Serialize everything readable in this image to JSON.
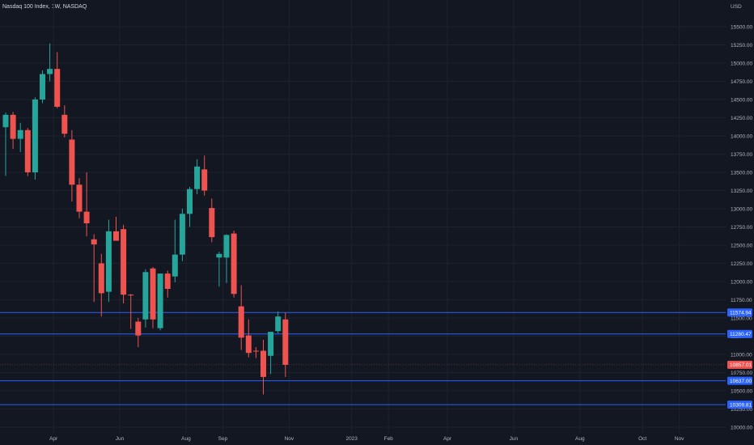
{
  "header": {
    "title": "Nasdaq 100 Index, 1W, NASDAQ",
    "currency": "USD"
  },
  "colors": {
    "background": "#131722",
    "grid": "#1e222d",
    "up": "#26a69a",
    "down": "#ef5350",
    "level_line": "#2962ff",
    "level_tag": "#2962ff",
    "last_price_tag": "#ef5350",
    "text": "#b2b5be"
  },
  "chart_data": {
    "type": "candlestick",
    "title": "Nasdaq 100 Index, 1W, NASDAQ",
    "ylabel": "USD",
    "ylim": [
      9950,
      15920
    ],
    "y_ticks": [
      10000,
      10250,
      10500,
      10750,
      11000,
      11250,
      11500,
      11750,
      12000,
      12250,
      12500,
      12750,
      13000,
      13250,
      13500,
      13750,
      14000,
      14250,
      14500,
      14750,
      15000,
      15250,
      15500
    ],
    "y_tick_labels": [
      "10000.00",
      "10250.00",
      "10500.00",
      "10750.00",
      "11000.00",
      "11250.00",
      "11500.00",
      "11750.00",
      "12000.00",
      "12250.00",
      "12500.00",
      "12750.00",
      "13000.00",
      "13250.00",
      "13500.00",
      "13750.00",
      "14000.00",
      "14250.00",
      "14500.00",
      "14750.00",
      "15000.00",
      "15250.00",
      "15500.00"
    ],
    "x_ticks": [
      {
        "label": "Apr",
        "index": 6.5
      },
      {
        "label": "Jun",
        "index": 15.5
      },
      {
        "label": "Aug",
        "index": 24.5
      },
      {
        "label": "Sep",
        "index": 29.5
      },
      {
        "label": "Nov",
        "index": 38.5
      },
      {
        "label": "2023",
        "index": 47.0
      },
      {
        "label": "Feb",
        "index": 52.0
      },
      {
        "label": "Apr",
        "index": 60.0
      },
      {
        "label": "Jun",
        "index": 69.0
      },
      {
        "label": "Aug",
        "index": 78.0
      },
      {
        "label": "Oct",
        "index": 86.5
      },
      {
        "label": "Nov",
        "index": 91.5
      }
    ],
    "candles": [
      {
        "o": 14120,
        "h": 14320,
        "l": 13450,
        "c": 14290
      },
      {
        "o": 14290,
        "h": 14330,
        "l": 13820,
        "c": 13960
      },
      {
        "o": 13960,
        "h": 14180,
        "l": 13780,
        "c": 14080
      },
      {
        "o": 14080,
        "h": 14110,
        "l": 13450,
        "c": 13500
      },
      {
        "o": 13500,
        "h": 14530,
        "l": 13400,
        "c": 14500
      },
      {
        "o": 14500,
        "h": 14900,
        "l": 14450,
        "c": 14850
      },
      {
        "o": 14850,
        "h": 15270,
        "l": 14750,
        "c": 14920
      },
      {
        "o": 14920,
        "h": 15150,
        "l": 14380,
        "c": 14400
      },
      {
        "o": 14290,
        "h": 14420,
        "l": 13980,
        "c": 14030
      },
      {
        "o": 13950,
        "h": 14080,
        "l": 13100,
        "c": 13330
      },
      {
        "o": 13330,
        "h": 13420,
        "l": 12870,
        "c": 12960
      },
      {
        "o": 12960,
        "h": 13500,
        "l": 12620,
        "c": 12800
      },
      {
        "o": 12580,
        "h": 12650,
        "l": 11720,
        "c": 12510
      },
      {
        "o": 12250,
        "h": 12380,
        "l": 11520,
        "c": 11840
      },
      {
        "o": 11860,
        "h": 12850,
        "l": 11720,
        "c": 12690
      },
      {
        "o": 12690,
        "h": 12890,
        "l": 12600,
        "c": 12560
      },
      {
        "o": 12720,
        "h": 12780,
        "l": 11700,
        "c": 11820
      },
      {
        "o": 11820,
        "h": 11830,
        "l": 11350,
        "c": 11810
      },
      {
        "o": 11450,
        "h": 11500,
        "l": 11100,
        "c": 11260
      },
      {
        "o": 11480,
        "h": 12170,
        "l": 11370,
        "c": 12130
      },
      {
        "o": 12180,
        "h": 12200,
        "l": 11360,
        "c": 11480
      },
      {
        "o": 11360,
        "h": 12090,
        "l": 11330,
        "c": 12110
      },
      {
        "o": 12110,
        "h": 12150,
        "l": 11780,
        "c": 11900
      },
      {
        "o": 12070,
        "h": 12850,
        "l": 11990,
        "c": 12370
      },
      {
        "o": 12370,
        "h": 13000,
        "l": 12280,
        "c": 12930
      },
      {
        "o": 12930,
        "h": 13300,
        "l": 12750,
        "c": 13270
      },
      {
        "o": 13270,
        "h": 13680,
        "l": 13200,
        "c": 13580
      },
      {
        "o": 13540,
        "h": 13730,
        "l": 13180,
        "c": 13250
      },
      {
        "o": 13010,
        "h": 13140,
        "l": 12540,
        "c": 12610
      },
      {
        "o": 12330,
        "h": 12410,
        "l": 11930,
        "c": 12380
      },
      {
        "o": 12330,
        "h": 12650,
        "l": 11980,
        "c": 12640
      },
      {
        "o": 12660,
        "h": 12700,
        "l": 11780,
        "c": 11830
      },
      {
        "o": 11660,
        "h": 11950,
        "l": 11060,
        "c": 11230
      },
      {
        "o": 11260,
        "h": 11480,
        "l": 10960,
        "c": 11020
      },
      {
        "o": 11050,
        "h": 11100,
        "l": 10950,
        "c": 11040
      },
      {
        "o": 11050,
        "h": 11200,
        "l": 10450,
        "c": 10690
      },
      {
        "o": 10980,
        "h": 11290,
        "l": 10730,
        "c": 11310
      },
      {
        "o": 11320,
        "h": 11590,
        "l": 11290,
        "c": 11520
      },
      {
        "o": 11480,
        "h": 11570,
        "l": 10690,
        "c": 10857
      }
    ],
    "levels": [
      {
        "value": 11574.94,
        "label": "11574.94"
      },
      {
        "value": 11280.47,
        "label": "11280.47"
      },
      {
        "value": 10637.0,
        "label": "10637.00"
      },
      {
        "value": 10309.81,
        "label": "10309.81"
      }
    ],
    "last_price": {
      "value": 10857.01,
      "label": "10857.01"
    }
  }
}
